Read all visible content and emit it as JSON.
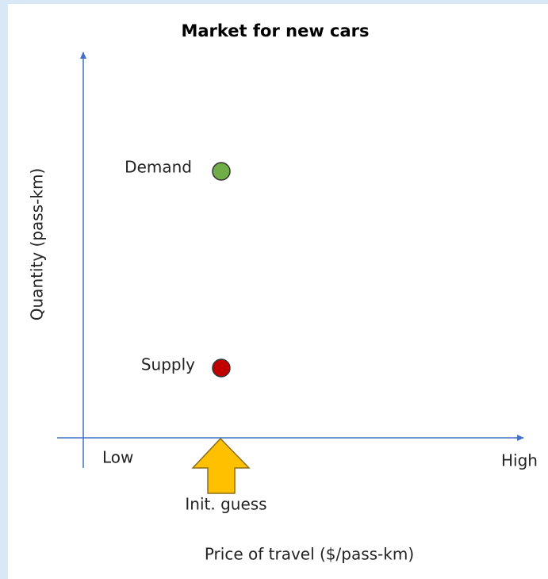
{
  "title": "Market for new cars",
  "y_axis_label": "Quantity (pass-km)",
  "x_axis_label": "Price of travel ($/pass-km)",
  "x_axis_ends": [
    "Low",
    "High"
  ],
  "marker_label": "Init. guess",
  "nodes": [
    {
      "label": "Demand"
    },
    {
      "label": "Supply"
    }
  ]
}
